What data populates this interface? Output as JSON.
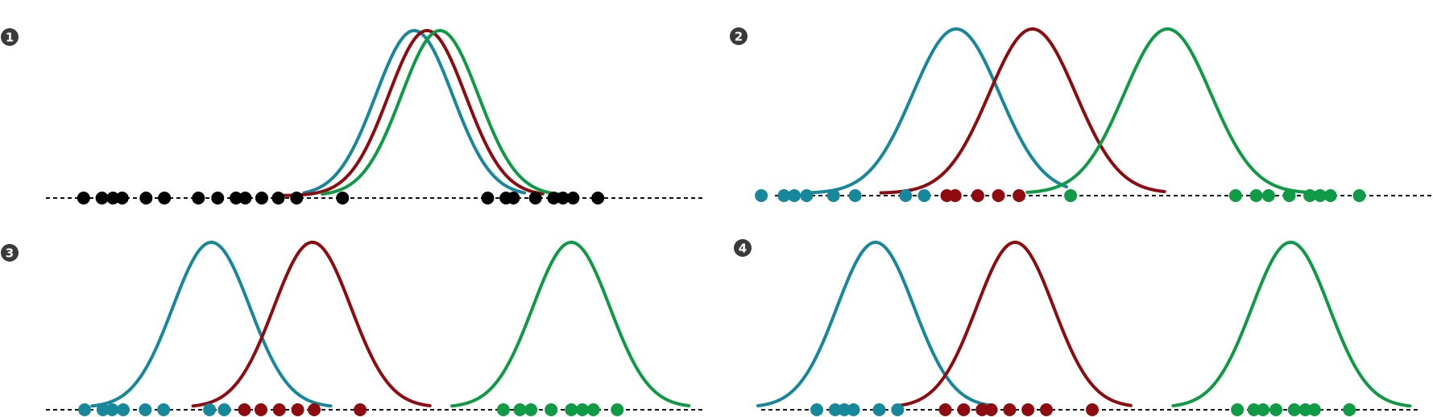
{
  "colors": {
    "teal": "#17879b",
    "red": "#8e0b0f",
    "green": "#0f9a45",
    "black": "#000000",
    "badge": "#3a3a3a"
  },
  "panels": [
    {
      "badge": "1",
      "points": {
        "black": [
          -3.3,
          -3.1,
          -2.98,
          -2.88,
          -2.62,
          -2.42,
          -2.05,
          -1.84,
          -1.64,
          -1.54,
          -1.36,
          -1.18,
          -0.98,
          -0.48,
          1.1,
          1.3,
          1.38,
          1.62,
          1.82,
          1.92,
          2.03,
          2.3
        ]
      },
      "curves": [
        {
          "color": "teal",
          "mean": 0.3,
          "sd": 0.42,
          "from": -0.9,
          "to": 1.5
        },
        {
          "color": "red",
          "mean": 0.44,
          "sd": 0.42,
          "from": -1.2,
          "to": 1.7
        },
        {
          "color": "green",
          "mean": 0.58,
          "sd": 0.42,
          "from": -0.7,
          "to": 1.9
        }
      ]
    },
    {
      "badge": "2",
      "points": {
        "teal": [
          -2.96,
          -2.74,
          -2.64,
          -2.52,
          -2.26,
          -2.05,
          -1.56,
          -1.38
        ],
        "red": [
          -1.16,
          -1.08,
          -0.86,
          -0.66,
          -0.46
        ],
        "green": [
          0.04,
          1.64,
          1.84,
          1.96,
          2.16,
          2.36,
          2.46,
          2.56,
          2.84
        ]
      },
      "curves": [
        {
          "color": "teal",
          "mean": -1.07,
          "sd": 0.42,
          "from": -2.5,
          "to": 0.0
        },
        {
          "color": "red",
          "mean": -0.33,
          "sd": 0.42,
          "from": -1.8,
          "to": 0.95
        },
        {
          "color": "green",
          "mean": 0.98,
          "sd": 0.42,
          "from": -0.38,
          "to": 2.52
        }
      ]
    },
    {
      "badge": "3",
      "points": {
        "teal": [
          -3.28,
          -3.08,
          -2.98,
          -2.86,
          -2.62,
          -2.42,
          -1.92,
          -1.76
        ],
        "red": [
          -1.54,
          -1.36,
          -1.16,
          -0.96,
          -0.78,
          -0.28
        ],
        "green": [
          1.28,
          1.46,
          1.58,
          1.8,
          2.02,
          2.14,
          2.26,
          2.52
        ]
      },
      "curves": [
        {
          "color": "teal",
          "mean": -1.9,
          "sd": 0.42,
          "from": -3.2,
          "to": -0.6
        },
        {
          "color": "red",
          "mean": -0.8,
          "sd": 0.42,
          "from": -2.1,
          "to": 0.48
        },
        {
          "color": "green",
          "mean": 2.02,
          "sd": 0.42,
          "from": 0.72,
          "to": 3.3
        }
      ]
    },
    {
      "badge": "4",
      "points": {
        "teal": [
          -3.0,
          -2.8,
          -2.7,
          -2.6,
          -2.32,
          -2.12
        ],
        "red": [
          -1.6,
          -1.4,
          -1.2,
          -1.1,
          -0.9,
          -0.7,
          -0.5,
          0.0
        ],
        "green": [
          1.58,
          1.76,
          1.86,
          2.0,
          2.2,
          2.32,
          2.42,
          2.8
        ]
      },
      "curves": [
        {
          "color": "teal",
          "mean": -2.36,
          "sd": 0.42,
          "from": -3.64,
          "to": -1.1
        },
        {
          "color": "red",
          "mean": -0.84,
          "sd": 0.42,
          "from": -2.12,
          "to": 0.42
        },
        {
          "color": "green",
          "mean": 2.16,
          "sd": 0.42,
          "from": 0.88,
          "to": 3.46
        }
      ]
    }
  ]
}
